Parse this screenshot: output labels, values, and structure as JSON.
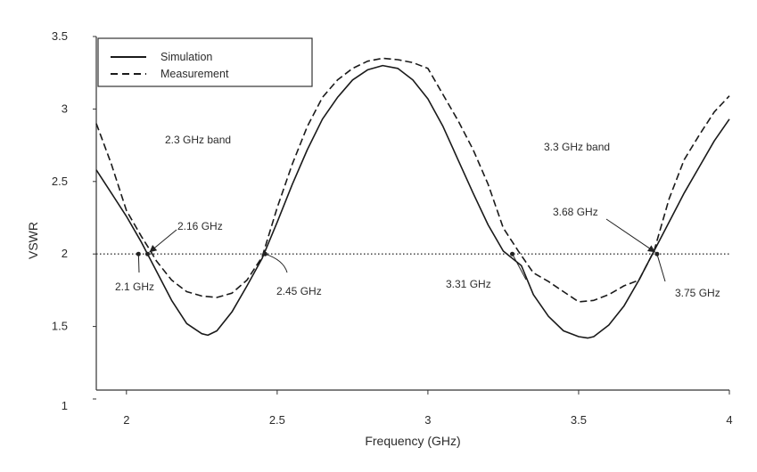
{
  "chart_data": {
    "type": "line",
    "title": "",
    "xlabel": "Frequency (GHz)",
    "ylabel": "VSWR",
    "xlim": [
      1.9,
      4.0
    ],
    "ylim": [
      1.0,
      3.5
    ],
    "x_ticks": [
      "2",
      "2.5",
      "3",
      "3.5",
      "4"
    ],
    "y_ticks": [
      "1",
      "1.5",
      "2",
      "2.5",
      "3",
      "3.5"
    ],
    "grid": false,
    "legend_position": "top-left",
    "reference_line": {
      "y": 2.0,
      "style": "dotted"
    },
    "series": [
      {
        "name": "Simulation",
        "style": "solid",
        "color": "#1a1a1a",
        "x": [
          1.9,
          1.95,
          2.0,
          2.05,
          2.1,
          2.15,
          2.2,
          2.25,
          2.27,
          2.3,
          2.35,
          2.4,
          2.45,
          2.5,
          2.55,
          2.6,
          2.65,
          2.7,
          2.75,
          2.8,
          2.85,
          2.9,
          2.95,
          3.0,
          3.05,
          3.1,
          3.15,
          3.2,
          3.25,
          3.31,
          3.35,
          3.4,
          3.45,
          3.5,
          3.53,
          3.55,
          3.6,
          3.65,
          3.7,
          3.75,
          3.8,
          3.85,
          3.9,
          3.95,
          4.0
        ],
        "y": [
          2.58,
          2.42,
          2.26,
          2.08,
          1.88,
          1.68,
          1.52,
          1.45,
          1.44,
          1.47,
          1.6,
          1.78,
          1.97,
          2.22,
          2.48,
          2.72,
          2.93,
          3.08,
          3.2,
          3.27,
          3.3,
          3.28,
          3.2,
          3.07,
          2.88,
          2.65,
          2.42,
          2.2,
          2.02,
          1.92,
          1.72,
          1.57,
          1.47,
          1.43,
          1.42,
          1.43,
          1.51,
          1.64,
          1.82,
          2.02,
          2.22,
          2.42,
          2.6,
          2.78,
          2.93
        ]
      },
      {
        "name": "Measurement",
        "style": "dashed",
        "color": "#1a1a1a",
        "x": [
          1.9,
          1.95,
          2.0,
          2.05,
          2.08,
          2.1,
          2.15,
          2.2,
          2.25,
          2.3,
          2.35,
          2.4,
          2.45,
          2.5,
          2.55,
          2.6,
          2.65,
          2.7,
          2.75,
          2.8,
          2.85,
          2.9,
          2.95,
          3.0,
          3.05,
          3.1,
          3.15,
          3.2,
          3.25,
          3.3,
          3.35,
          3.4,
          3.45,
          3.5,
          3.55,
          3.6,
          3.65,
          3.7,
          3.75,
          3.8,
          3.85,
          3.9,
          3.95,
          4.0
        ],
        "y": [
          2.9,
          2.62,
          2.3,
          2.12,
          2.02,
          1.95,
          1.82,
          1.74,
          1.71,
          1.7,
          1.73,
          1.82,
          1.98,
          2.32,
          2.62,
          2.88,
          3.08,
          3.2,
          3.28,
          3.33,
          3.35,
          3.34,
          3.32,
          3.28,
          3.1,
          2.92,
          2.72,
          2.48,
          2.18,
          2.02,
          1.87,
          1.81,
          1.74,
          1.67,
          1.68,
          1.72,
          1.78,
          1.82,
          2.02,
          2.38,
          2.65,
          2.82,
          2.98,
          3.09
        ]
      }
    ],
    "annotations": [
      {
        "text": "2.3 GHz band"
      },
      {
        "text": "3.3 GHz band"
      },
      {
        "text": "2.16 GHz"
      },
      {
        "text": "2.1 GHz"
      },
      {
        "text": "2.45  GHz"
      },
      {
        "text": "3.31 GHz"
      },
      {
        "text": "3.68 GHz"
      },
      {
        "text": "3.75 GHz"
      }
    ]
  }
}
